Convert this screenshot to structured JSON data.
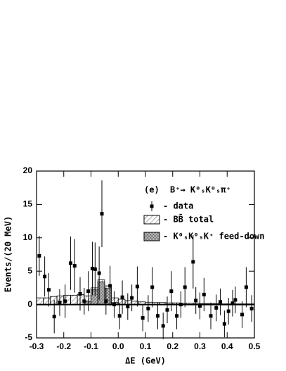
{
  "chart_data": {
    "type": "scatter",
    "panel": "(e)",
    "title": "B⁺→ K⁰ₛK⁰ₛπ⁺",
    "xlabel": "ΔE (GeV)",
    "ylabel": "Events/(20 MeV)",
    "xlim": [
      -0.3,
      0.5
    ],
    "ylim": [
      -5,
      20
    ],
    "xticks": [
      -0.3,
      -0.2,
      -0.1,
      {
        "value": 0,
        "label": "0.0"
      },
      0.1,
      0.2,
      0.3,
      0.4,
      0.5
    ],
    "yticks": [
      -5,
      0,
      5,
      10,
      15,
      20
    ],
    "series": [
      {
        "name": "- data",
        "color": "#000000",
        "x": [
          -0.29,
          -0.27,
          -0.255,
          -0.235,
          -0.215,
          -0.195,
          -0.175,
          -0.16,
          -0.14,
          -0.125,
          -0.11,
          -0.095,
          -0.085,
          -0.07,
          -0.06,
          -0.045,
          -0.03,
          -0.015,
          0.005,
          0.015,
          0.035,
          0.05,
          0.07,
          0.09,
          0.11,
          0.125,
          0.145,
          0.165,
          0.18,
          0.195,
          0.215,
          0.23,
          0.245,
          0.275,
          0.285,
          0.3,
          0.315,
          0.34,
          0.36,
          0.375,
          0.39,
          0.405,
          0.42,
          0.43,
          0.455,
          0.47,
          0.49
        ],
        "values": [
          7.3,
          4.2,
          2.2,
          -1.8,
          0.3,
          0.5,
          6.2,
          5.8,
          1.6,
          0.5,
          2.0,
          5.4,
          5.3,
          4.7,
          13.6,
          0.5,
          2.8,
          0.0,
          -1.7,
          1.1,
          -0.3,
          1.0,
          2.7,
          -2.0,
          -0.6,
          2.6,
          -1.7,
          -3.2,
          -0.8,
          2.0,
          -1.7,
          0.0,
          2.6,
          6.4,
          0.6,
          -0.2,
          1.5,
          -1.7,
          -0.5,
          0.4,
          -2.9,
          -1.0,
          0.2,
          0.7,
          -1.5,
          2.6,
          -0.6
        ],
        "errors": [
          3,
          3,
          2.5,
          2.5,
          2,
          2.5,
          4,
          4,
          2.5,
          2,
          3,
          4,
          4,
          4,
          5,
          2,
          3,
          2,
          2,
          2.5,
          2,
          2,
          3,
          2,
          2,
          3,
          2,
          2,
          2,
          3,
          2,
          2,
          3,
          4,
          2,
          2,
          2.5,
          2,
          2,
          2,
          2,
          2,
          2,
          2,
          2,
          3,
          2
        ]
      }
    ],
    "histograms": [
      {
        "name": "- BB̄ total",
        "fill": "hatch",
        "bins": [
          -0.3,
          -0.275,
          -0.25,
          -0.225,
          -0.2,
          -0.175,
          -0.15,
          -0.125,
          -0.1,
          -0.075,
          -0.05,
          -0.025,
          0,
          0.025,
          0.05,
          0.075,
          0.1,
          0.125,
          0.15,
          0.175,
          0.2,
          0.225,
          0.25,
          0.275,
          0.3,
          0.325,
          0.35,
          0.375,
          0.4,
          0.425,
          0.45,
          0.475,
          0.5
        ],
        "values": [
          1.0,
          1.0,
          1.2,
          1.3,
          1.4,
          1.4,
          1.5,
          1.3,
          2.5,
          3.7,
          2.8,
          1.0,
          0.8,
          0.6,
          0.5,
          0.4,
          0.35,
          0.3,
          0.3,
          0.25,
          0.25,
          0.2,
          0.2,
          0.2,
          0.15,
          0.15,
          0.15,
          0.1,
          0.1,
          0.1,
          0.1,
          0.1
        ]
      },
      {
        "name": "- K⁰ₛK⁰ₛK⁺ feed-down",
        "fill": "crosshatch",
        "bins": [
          -0.3,
          -0.275,
          -0.25,
          -0.225,
          -0.2,
          -0.175,
          -0.15,
          -0.125,
          -0.1,
          -0.075,
          -0.05,
          -0.025,
          0,
          0.025,
          0.05,
          0.075,
          0.1,
          0.125,
          0.15,
          0.175,
          0.2,
          0.225,
          0.25,
          0.275,
          0.3,
          0.325,
          0.35,
          0.375,
          0.4,
          0.425,
          0.45,
          0.475,
          0.5
        ],
        "values": [
          0,
          0,
          0,
          0,
          0,
          0,
          0,
          0.5,
          2.2,
          3.4,
          2.4,
          0.3,
          0,
          0,
          0,
          0,
          0,
          0,
          0,
          0,
          0,
          0,
          0,
          0,
          0,
          0,
          0,
          0,
          0,
          0,
          0,
          0
        ]
      }
    ]
  }
}
